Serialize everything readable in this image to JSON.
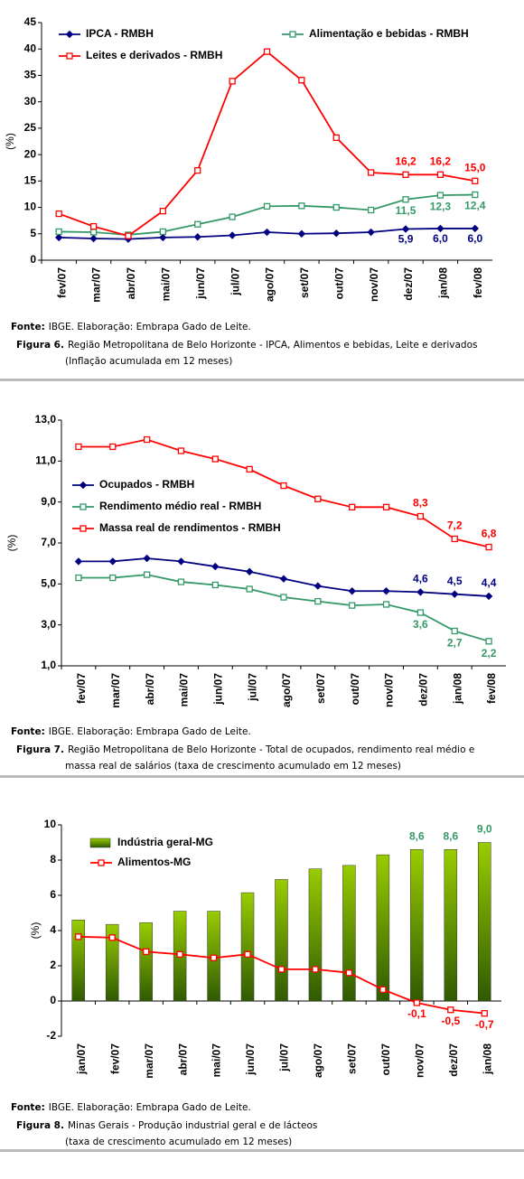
{
  "chart_data": [
    {
      "type": "line",
      "y_label": "(%)",
      "categories": [
        "fev/07",
        "mar/07",
        "abr/07",
        "mai/07",
        "jun/07",
        "jul/07",
        "ago/07",
        "set/07",
        "out/07",
        "nov/07",
        "dez/07",
        "jan/08",
        "fev/08"
      ],
      "series": [
        {
          "name": "IPCA - RMBH",
          "color": "#000080",
          "marker": "diamond",
          "values": [
            4.3,
            4.1,
            4.0,
            4.3,
            4.4,
            4.7,
            5.3,
            5.0,
            5.1,
            5.3,
            5.9,
            6.0,
            6.0
          ],
          "value_labels": [
            null,
            null,
            null,
            null,
            null,
            null,
            null,
            null,
            null,
            null,
            "5,9",
            "6,0",
            "6,0"
          ]
        },
        {
          "name": "Alimentação e bebidas - RMBH",
          "color": "#339966",
          "marker": "square",
          "values": [
            5.4,
            5.3,
            4.8,
            5.4,
            6.8,
            8.2,
            10.2,
            10.3,
            10.0,
            9.5,
            11.5,
            12.3,
            12.4
          ],
          "value_labels": [
            null,
            null,
            null,
            null,
            null,
            null,
            null,
            null,
            null,
            null,
            "11,5",
            "12,3",
            "12,4"
          ]
        },
        {
          "name": "Leites e derivados - RMBH",
          "color": "#ff0000",
          "marker": "square",
          "values": [
            8.8,
            6.4,
            4.6,
            9.3,
            17.0,
            33.9,
            39.5,
            34.1,
            23.2,
            16.6,
            16.2,
            16.2,
            15.0
          ],
          "value_labels": [
            null,
            null,
            null,
            null,
            null,
            null,
            null,
            null,
            null,
            null,
            "16,2",
            "16,2",
            "15,0"
          ]
        }
      ],
      "ylim": [
        0,
        45
      ],
      "yticks": [
        0,
        5,
        10,
        15,
        20,
        25,
        30,
        35,
        40,
        45
      ],
      "grid": false,
      "source_label": "Fonte:",
      "source": "IBGE. Elaboração: Embrapa Gado de Leite.",
      "figure_label": "Figura 6.",
      "caption_lines": [
        "Região Metropolitana de Belo Horizonte - IPCA, Alimentos e bebidas, Leite e derivados",
        "(Inflação acumulada em 12 meses)"
      ]
    },
    {
      "type": "line",
      "y_label": "(%)",
      "categories": [
        "fev/07",
        "mar/07",
        "abr/07",
        "mai/07",
        "jun/07",
        "jul/07",
        "ago/07",
        "set/07",
        "out/07",
        "nov/07",
        "dez/07",
        "jan/08",
        "fev/08"
      ],
      "series": [
        {
          "name": "Ocupados - RMBH",
          "color": "#000080",
          "marker": "diamond",
          "values": [
            6.1,
            6.1,
            6.25,
            6.1,
            5.85,
            5.6,
            5.25,
            4.9,
            4.65,
            4.65,
            4.6,
            4.5,
            4.4
          ],
          "value_labels": [
            null,
            null,
            null,
            null,
            null,
            null,
            null,
            null,
            null,
            null,
            "4,6",
            "4,5",
            "4,4"
          ]
        },
        {
          "name": "Rendimento médio real - RMBH",
          "color": "#339966",
          "marker": "square",
          "values": [
            5.3,
            5.3,
            5.45,
            5.1,
            4.95,
            4.75,
            4.35,
            4.15,
            3.95,
            4.0,
            3.6,
            2.7,
            2.2
          ],
          "value_labels": [
            null,
            null,
            null,
            null,
            null,
            null,
            null,
            null,
            null,
            null,
            "3,6",
            "2,7",
            "2,2"
          ]
        },
        {
          "name": "Massa real de rendimentos - RMBH",
          "color": "#ff0000",
          "marker": "square",
          "values": [
            11.7,
            11.7,
            12.05,
            11.5,
            11.1,
            10.6,
            9.8,
            9.15,
            8.75,
            8.75,
            8.3,
            7.2,
            6.8
          ],
          "value_labels": [
            null,
            null,
            null,
            null,
            null,
            null,
            null,
            null,
            null,
            null,
            "8,3",
            "7,2",
            "6,8"
          ]
        }
      ],
      "ylim": [
        1,
        13
      ],
      "yticks": [
        {
          "value": 1,
          "label": "1,0"
        },
        {
          "value": 3,
          "label": "3,0"
        },
        {
          "value": 5,
          "label": "5,0"
        },
        {
          "value": 7,
          "label": "7,0"
        },
        {
          "value": 9,
          "label": "9,0"
        },
        {
          "value": 11,
          "label": "11,0"
        },
        {
          "value": 13,
          "label": "13,0"
        }
      ],
      "grid": false,
      "source_label": "Fonte:",
      "source": "IBGE. Elaboração: Embrapa Gado de Leite.",
      "figure_label": "Figura 7.",
      "caption_lines": [
        "Região Metropolitana de Belo Horizonte - Total de ocupados, rendimento real médio e",
        "massa real de salários (taxa de crescimento acumulado em 12 meses)"
      ]
    },
    {
      "type": "combo",
      "y_label": "(%)",
      "categories": [
        "jan/07",
        "fev/07",
        "mar/07",
        "abr/07",
        "mai/07",
        "jun/07",
        "jul/07",
        "ago/07",
        "set/07",
        "out/07",
        "nov/07",
        "dez/07",
        "jan/08"
      ],
      "series": [
        {
          "name": "Indústria geral-MG",
          "type": "bar",
          "color": "#669900",
          "label_color": "#339966",
          "values": [
            4.6,
            4.35,
            4.45,
            5.1,
            5.1,
            6.15,
            6.9,
            7.5,
            7.7,
            8.3,
            8.6,
            8.6,
            9.0
          ],
          "value_labels": [
            null,
            null,
            null,
            null,
            null,
            null,
            null,
            null,
            null,
            null,
            "8,6",
            "8,6",
            "9,0"
          ]
        },
        {
          "name": "Alimentos-MG",
          "type": "line",
          "color": "#ff0000",
          "marker": "square",
          "values": [
            3.65,
            3.6,
            2.8,
            2.65,
            2.45,
            2.65,
            1.8,
            1.8,
            1.6,
            0.65,
            -0.1,
            -0.5,
            -0.7
          ],
          "value_labels": [
            null,
            null,
            null,
            null,
            null,
            null,
            null,
            null,
            null,
            null,
            "-0,1",
            "-0,5",
            "-0,7"
          ]
        }
      ],
      "ylim": [
        -2,
        10
      ],
      "yticks": [
        -2,
        0,
        2,
        4,
        6,
        8,
        10
      ],
      "grid": false,
      "source_label": "Fonte:",
      "source": "IBGE. Elaboração: Embrapa Gado de Leite.",
      "figure_label": "Figura 8.",
      "caption_lines": [
        "Minas Gerais - Produção industrial geral e de lácteos",
        "(taxa de crescimento acumulado em 12 meses)"
      ]
    }
  ]
}
